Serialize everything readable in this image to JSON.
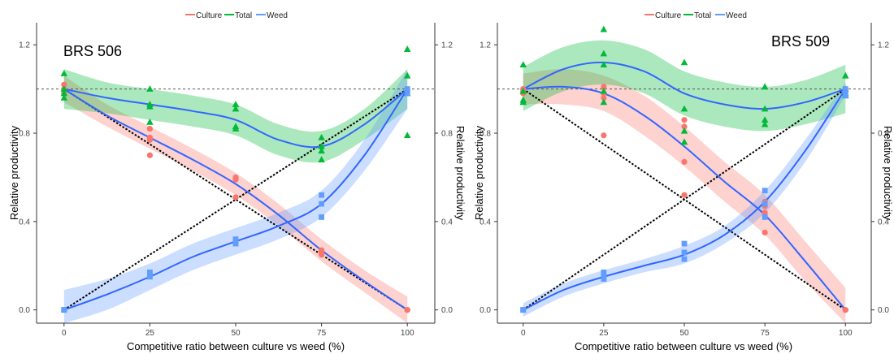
{
  "colors": {
    "culture": "#F8766D",
    "total": "#00BA38",
    "weed": "#619CFF",
    "fit_line": "#3366FF",
    "culture_band": "#F8766D",
    "total_band": "#00BA38",
    "weed_band": "#619CFF"
  },
  "legend_labels": [
    "Culture",
    "Total",
    "Weed"
  ],
  "chart_data": [
    {
      "type": "scatter",
      "panel_label": "BRS 506",
      "xlabel": "Competitive ratio between culture vs weed (%)",
      "ylabel": "Relative productivity",
      "ylabel_right": "Relative productivity",
      "xlim": [
        -8,
        108
      ],
      "ylim": [
        -0.06,
        1.3
      ],
      "xticks": [
        0,
        25,
        50,
        75,
        100
      ],
      "yticks": [
        0.0,
        0.4,
        0.8,
        1.2
      ],
      "ytick_labels": [
        "0.0",
        "0.4",
        "0.8",
        "1.2"
      ],
      "legend_position": "top-center",
      "grid": false,
      "reference_line_y": 1.0,
      "expected_lines": [
        {
          "x": [
            0,
            100
          ],
          "y": [
            1,
            0
          ]
        },
        {
          "x": [
            0,
            100
          ],
          "y": [
            0,
            1
          ]
        }
      ],
      "series": [
        {
          "name": "Culture",
          "marker": "circle",
          "points": [
            [
              0,
              1.0
            ],
            [
              0,
              0.98
            ],
            [
              0,
              1.02
            ],
            [
              25,
              0.82
            ],
            [
              25,
              0.78
            ],
            [
              25,
              0.77
            ],
            [
              25,
              0.7
            ],
            [
              50,
              0.6
            ],
            [
              50,
              0.59
            ],
            [
              50,
              0.51
            ],
            [
              75,
              0.27
            ],
            [
              75,
              0.26
            ],
            [
              75,
              0.25
            ],
            [
              100,
              0.0
            ],
            [
              100,
              0.0
            ],
            [
              100,
              0.0
            ]
          ],
          "fit": [
            [
              0,
              1.0
            ],
            [
              12.5,
              0.88
            ],
            [
              25,
              0.78
            ],
            [
              37.5,
              0.68
            ],
            [
              50,
              0.57
            ],
            [
              62.5,
              0.43
            ],
            [
              75,
              0.27
            ],
            [
              87.5,
              0.13
            ],
            [
              100,
              0.0
            ]
          ],
          "band": [
            0.06,
            0.05,
            0.05,
            0.05,
            0.05,
            0.05,
            0.05,
            0.05,
            0.06
          ]
        },
        {
          "name": "Total",
          "marker": "triangle",
          "points": [
            [
              0,
              1.07
            ],
            [
              0,
              1.0
            ],
            [
              0,
              0.96
            ],
            [
              0,
              0.98
            ],
            [
              25,
              1.0
            ],
            [
              25,
              0.93
            ],
            [
              25,
              0.92
            ],
            [
              25,
              0.85
            ],
            [
              50,
              0.93
            ],
            [
              50,
              0.91
            ],
            [
              50,
              0.83
            ],
            [
              50,
              0.82
            ],
            [
              75,
              0.78
            ],
            [
              75,
              0.74
            ],
            [
              75,
              0.72
            ],
            [
              75,
              0.68
            ],
            [
              100,
              1.18
            ],
            [
              100,
              1.06
            ],
            [
              100,
              0.98
            ],
            [
              100,
              0.79
            ]
          ],
          "fit": [
            [
              0,
              1.0
            ],
            [
              12.5,
              0.96
            ],
            [
              25,
              0.93
            ],
            [
              37.5,
              0.9
            ],
            [
              50,
              0.86
            ],
            [
              62.5,
              0.77
            ],
            [
              75,
              0.74
            ],
            [
              87.5,
              0.84
            ],
            [
              100,
              1.0
            ]
          ],
          "band": [
            0.09,
            0.07,
            0.07,
            0.07,
            0.07,
            0.07,
            0.07,
            0.07,
            0.09
          ]
        },
        {
          "name": "Weed",
          "marker": "square",
          "points": [
            [
              0,
              0.0
            ],
            [
              0,
              0.0
            ],
            [
              0,
              0.0
            ],
            [
              25,
              0.17
            ],
            [
              25,
              0.16
            ],
            [
              25,
              0.15
            ],
            [
              50,
              0.32
            ],
            [
              50,
              0.31
            ],
            [
              50,
              0.3
            ],
            [
              75,
              0.52
            ],
            [
              75,
              0.48
            ],
            [
              75,
              0.42
            ],
            [
              100,
              1.0
            ],
            [
              100,
              0.99
            ],
            [
              100,
              0.98
            ]
          ],
          "fit": [
            [
              0,
              0.0
            ],
            [
              12.5,
              0.07
            ],
            [
              25,
              0.15
            ],
            [
              37.5,
              0.24
            ],
            [
              50,
              0.31
            ],
            [
              62.5,
              0.38
            ],
            [
              75,
              0.48
            ],
            [
              87.5,
              0.7
            ],
            [
              100,
              1.0
            ]
          ],
          "band": [
            0.09,
            0.07,
            0.06,
            0.06,
            0.06,
            0.06,
            0.06,
            0.07,
            0.09
          ]
        }
      ]
    },
    {
      "type": "scatter",
      "panel_label": "BRS 509",
      "xlabel": "Competitive ratio between culture vs weed (%)",
      "ylabel": "Relative productivity",
      "ylabel_right": "Relative productivity",
      "xlim": [
        -8,
        108
      ],
      "ylim": [
        -0.06,
        1.3
      ],
      "xticks": [
        0,
        25,
        50,
        75,
        100
      ],
      "yticks": [
        0.0,
        0.4,
        0.8,
        1.2
      ],
      "ytick_labels": [
        "0.0",
        "0.4",
        "0.8",
        "1.2"
      ],
      "legend_position": "top-center",
      "grid": false,
      "reference_line_y": 1.0,
      "expected_lines": [
        {
          "x": [
            0,
            100
          ],
          "y": [
            1,
            0
          ]
        },
        {
          "x": [
            0,
            100
          ],
          "y": [
            0,
            1
          ]
        }
      ],
      "series": [
        {
          "name": "Culture",
          "marker": "circle",
          "points": [
            [
              0,
              1.0
            ],
            [
              0,
              0.99
            ],
            [
              0,
              0.98
            ],
            [
              25,
              1.01
            ],
            [
              25,
              0.98
            ],
            [
              25,
              0.96
            ],
            [
              25,
              0.79
            ],
            [
              50,
              0.86
            ],
            [
              50,
              0.83
            ],
            [
              50,
              0.67
            ],
            [
              50,
              0.52
            ],
            [
              75,
              0.49
            ],
            [
              75,
              0.47
            ],
            [
              75,
              0.44
            ],
            [
              75,
              0.35
            ],
            [
              100,
              0.0
            ],
            [
              100,
              0.0
            ]
          ],
          "fit": [
            [
              0,
              1.0
            ],
            [
              12.5,
              1.01
            ],
            [
              25,
              0.98
            ],
            [
              37.5,
              0.88
            ],
            [
              50,
              0.74
            ],
            [
              62.5,
              0.58
            ],
            [
              75,
              0.43
            ],
            [
              87.5,
              0.22
            ],
            [
              100,
              0.0
            ]
          ],
          "band": [
            0.07,
            0.08,
            0.08,
            0.09,
            0.09,
            0.09,
            0.09,
            0.09,
            0.1
          ]
        },
        {
          "name": "Total",
          "marker": "triangle",
          "points": [
            [
              0,
              1.11
            ],
            [
              0,
              0.99
            ],
            [
              0,
              0.95
            ],
            [
              0,
              0.94
            ],
            [
              25,
              1.27
            ],
            [
              25,
              1.16
            ],
            [
              25,
              1.11
            ],
            [
              25,
              0.99
            ],
            [
              25,
              0.94
            ],
            [
              50,
              1.12
            ],
            [
              50,
              0.91
            ],
            [
              50,
              0.81
            ],
            [
              50,
              0.76
            ],
            [
              75,
              1.01
            ],
            [
              75,
              0.91
            ],
            [
              75,
              0.86
            ],
            [
              75,
              0.84
            ],
            [
              100,
              1.06
            ],
            [
              100,
              1.0
            ],
            [
              100,
              0.98
            ],
            [
              100,
              0.97
            ]
          ],
          "fit": [
            [
              0,
              1.0
            ],
            [
              12.5,
              1.09
            ],
            [
              25,
              1.12
            ],
            [
              37.5,
              1.08
            ],
            [
              50,
              0.98
            ],
            [
              62.5,
              0.93
            ],
            [
              75,
              0.91
            ],
            [
              87.5,
              0.94
            ],
            [
              100,
              1.0
            ]
          ],
          "band": [
            0.1,
            0.1,
            0.1,
            0.1,
            0.1,
            0.1,
            0.1,
            0.1,
            0.11
          ]
        },
        {
          "name": "Weed",
          "marker": "square",
          "points": [
            [
              0,
              0.0
            ],
            [
              0,
              0.0
            ],
            [
              0,
              0.0
            ],
            [
              25,
              0.17
            ],
            [
              25,
              0.15
            ],
            [
              25,
              0.14
            ],
            [
              50,
              0.3
            ],
            [
              50,
              0.26
            ],
            [
              50,
              0.23
            ],
            [
              75,
              0.54
            ],
            [
              75,
              0.48
            ],
            [
              75,
              0.42
            ],
            [
              100,
              1.0
            ],
            [
              100,
              0.98
            ],
            [
              100,
              0.97
            ]
          ],
          "fit": [
            [
              0,
              0.0
            ],
            [
              12.5,
              0.09
            ],
            [
              25,
              0.15
            ],
            [
              37.5,
              0.2
            ],
            [
              50,
              0.25
            ],
            [
              62.5,
              0.34
            ],
            [
              75,
              0.49
            ],
            [
              87.5,
              0.72
            ],
            [
              100,
              1.0
            ]
          ],
          "band": [
            0.03,
            0.03,
            0.03,
            0.03,
            0.04,
            0.04,
            0.05,
            0.05,
            0.03
          ]
        }
      ]
    }
  ]
}
